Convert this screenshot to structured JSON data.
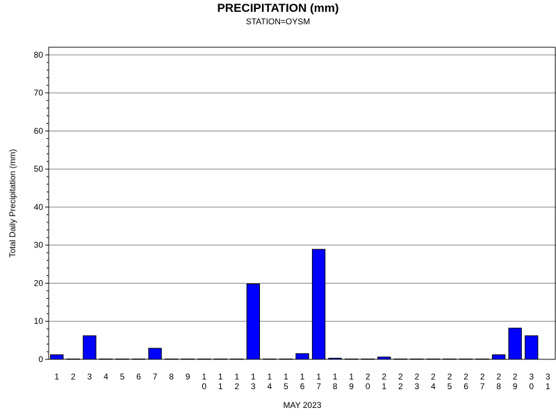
{
  "chart_data": {
    "type": "bar",
    "title": "PRECIPITATION (mm)",
    "subtitle": "STATION=OYSM",
    "xlabel": "MAY 2023",
    "ylabel": "Total Daily Precipitation (mm)",
    "ylim": [
      0,
      82
    ],
    "yticks": [
      0,
      10,
      20,
      30,
      40,
      50,
      60,
      70,
      80
    ],
    "grid": true,
    "bar_color": "#0000ff",
    "categories": [
      "1",
      "2",
      "3",
      "4",
      "5",
      "6",
      "7",
      "8",
      "9",
      "10",
      "11",
      "12",
      "13",
      "14",
      "15",
      "16",
      "17",
      "18",
      "19",
      "20",
      "21",
      "22",
      "23",
      "24",
      "25",
      "26",
      "27",
      "28",
      "29",
      "30",
      "31"
    ],
    "values": [
      1.2,
      0.1,
      6.2,
      0.1,
      0.1,
      0.1,
      2.9,
      0.1,
      0.1,
      0.1,
      0.1,
      0.1,
      19.8,
      0.1,
      0.1,
      1.5,
      28.9,
      0.3,
      0.1,
      0.1,
      0.6,
      0.1,
      0.1,
      0.1,
      0.1,
      0.1,
      0.1,
      1.2,
      8.2,
      6.2,
      null
    ]
  }
}
